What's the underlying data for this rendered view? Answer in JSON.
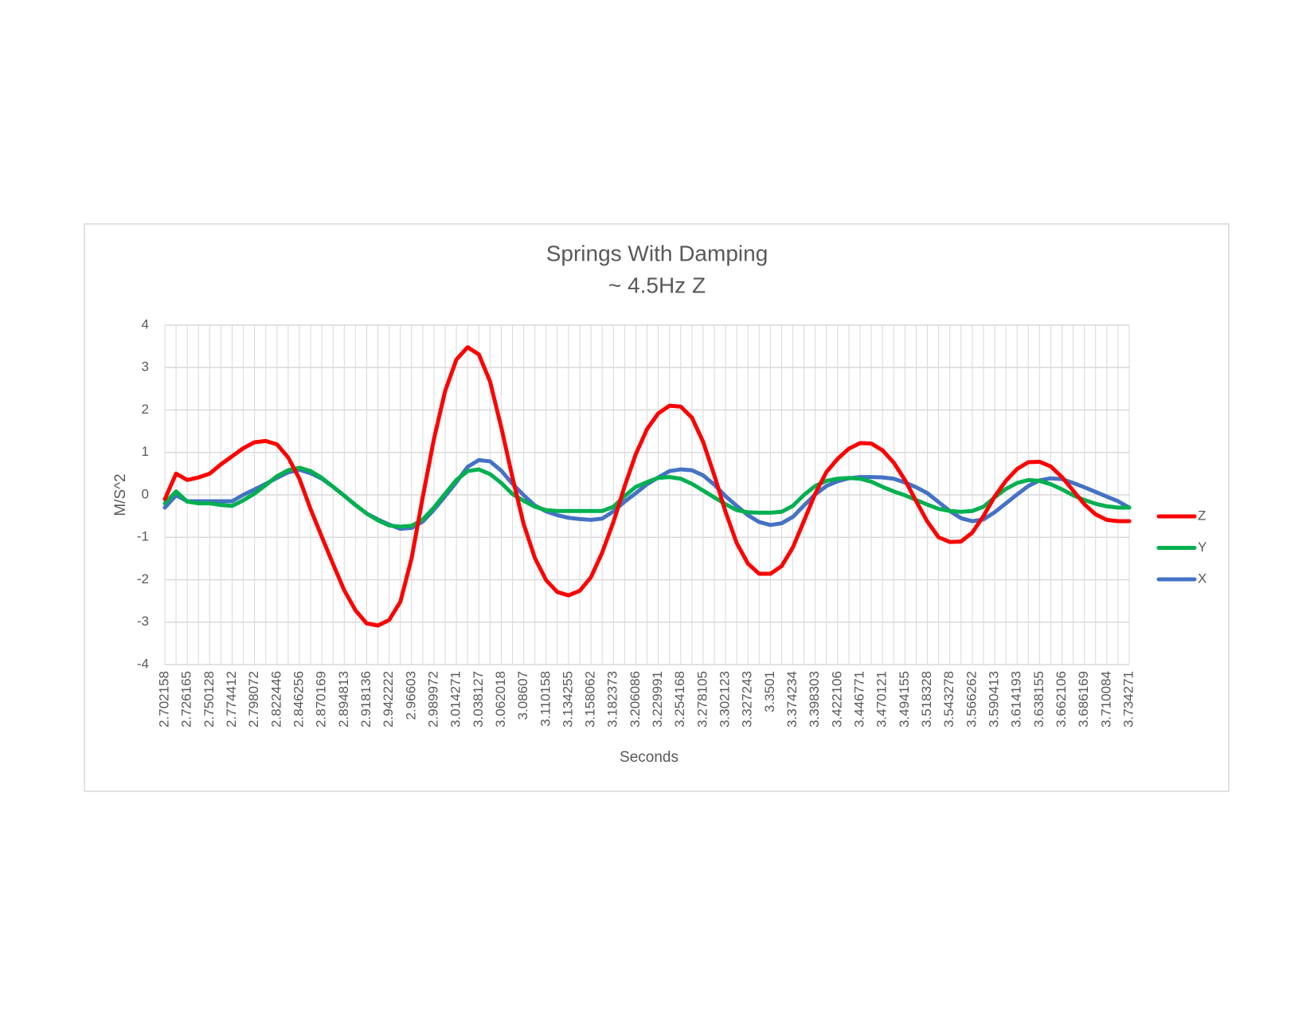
{
  "chart_data": {
    "type": "line",
    "title": "Springs With Damping",
    "subtitle": "~ 4.5Hz Z",
    "x_label": "Seconds",
    "y_label": "M/S^2",
    "categories": [
      "2.702158",
      null,
      "2.726165",
      null,
      "2.750128",
      null,
      "2.774412",
      null,
      "2.798072",
      null,
      "2.822446",
      null,
      "2.846256",
      null,
      "2.870169",
      null,
      "2.894813",
      null,
      "2.918136",
      null,
      "2.942222",
      null,
      "2.96603",
      null,
      "2.989972",
      null,
      "3.014271",
      null,
      "3.038127",
      null,
      "3.062018",
      null,
      "3.08607",
      null,
      "3.110158",
      null,
      "3.134255",
      null,
      "3.158062",
      null,
      "3.182373",
      null,
      "3.206086",
      null,
      "3.229991",
      null,
      "3.254168",
      null,
      "3.278105",
      null,
      "3.302123",
      null,
      "3.327243",
      null,
      "3.3501",
      null,
      "3.374234",
      null,
      "3.398303",
      null,
      "3.422106",
      null,
      "3.446771",
      null,
      "3.470121",
      null,
      "3.494155",
      null,
      "3.518328",
      null,
      "3.543278",
      null,
      "3.566262",
      null,
      "3.590413",
      null,
      "3.614193",
      null,
      "3.638155",
      null,
      "3.662106",
      null,
      "3.686169",
      null,
      "3.710084",
      null,
      "3.734271"
    ],
    "series": [
      {
        "name": "Z",
        "color": "#ff0000",
        "values": [
          -0.1,
          0.5,
          0.35,
          0.41,
          0.5,
          0.72,
          0.91,
          1.1,
          1.24,
          1.27,
          1.19,
          0.88,
          0.38,
          -0.34,
          -0.99,
          -1.63,
          -2.25,
          -2.72,
          -3.03,
          -3.08,
          -2.95,
          -2.52,
          -1.5,
          -0.05,
          1.32,
          2.45,
          3.19,
          3.48,
          3.31,
          2.67,
          1.59,
          0.41,
          -0.69,
          -1.49,
          -2.01,
          -2.29,
          -2.37,
          -2.26,
          -1.94,
          -1.36,
          -0.64,
          0.2,
          0.96,
          1.55,
          1.92,
          2.1,
          2.08,
          1.82,
          1.25,
          0.46,
          -0.4,
          -1.14,
          -1.62,
          -1.86,
          -1.86,
          -1.68,
          -1.24,
          -0.61,
          0.03,
          0.54,
          0.85,
          1.09,
          1.22,
          1.21,
          1.05,
          0.76,
          0.35,
          -0.15,
          -0.63,
          -1.0,
          -1.11,
          -1.1,
          -0.89,
          -0.5,
          -0.04,
          0.33,
          0.61,
          0.77,
          0.78,
          0.67,
          0.42,
          0.1,
          -0.22,
          -0.46,
          -0.59,
          -0.62,
          -0.62
        ]
      },
      {
        "name": "Y",
        "color": "#00b050",
        "values": [
          -0.2,
          0.08,
          -0.16,
          -0.2,
          -0.2,
          -0.24,
          -0.26,
          -0.13,
          0.03,
          0.23,
          0.44,
          0.58,
          0.64,
          0.56,
          0.4,
          0.19,
          -0.02,
          -0.24,
          -0.44,
          -0.6,
          -0.72,
          -0.75,
          -0.73,
          -0.58,
          -0.3,
          0.03,
          0.35,
          0.56,
          0.6,
          0.49,
          0.28,
          0.02,
          -0.14,
          -0.28,
          -0.36,
          -0.38,
          -0.38,
          -0.38,
          -0.38,
          -0.38,
          -0.28,
          -0.03,
          0.19,
          0.3,
          0.4,
          0.42,
          0.38,
          0.26,
          0.1,
          -0.06,
          -0.22,
          -0.36,
          -0.41,
          -0.42,
          -0.42,
          -0.4,
          -0.26,
          0.0,
          0.21,
          0.33,
          0.38,
          0.4,
          0.38,
          0.31,
          0.19,
          0.08,
          -0.01,
          -0.12,
          -0.23,
          -0.33,
          -0.38,
          -0.4,
          -0.38,
          -0.28,
          -0.06,
          0.14,
          0.28,
          0.35,
          0.33,
          0.25,
          0.13,
          -0.01,
          -0.12,
          -0.21,
          -0.27,
          -0.3,
          -0.3
        ]
      },
      {
        "name": "X",
        "color": "#4472c4",
        "values": [
          -0.3,
          -0.01,
          -0.15,
          -0.15,
          -0.15,
          -0.15,
          -0.15,
          0.0,
          0.13,
          0.26,
          0.4,
          0.53,
          0.59,
          0.51,
          0.38,
          0.19,
          -0.02,
          -0.24,
          -0.44,
          -0.58,
          -0.7,
          -0.8,
          -0.78,
          -0.63,
          -0.35,
          -0.03,
          0.3,
          0.66,
          0.82,
          0.79,
          0.57,
          0.26,
          -0.01,
          -0.25,
          -0.39,
          -0.48,
          -0.54,
          -0.57,
          -0.59,
          -0.56,
          -0.39,
          -0.16,
          0.04,
          0.25,
          0.41,
          0.56,
          0.6,
          0.58,
          0.46,
          0.24,
          -0.03,
          -0.26,
          -0.48,
          -0.64,
          -0.71,
          -0.67,
          -0.52,
          -0.25,
          0.01,
          0.21,
          0.32,
          0.39,
          0.42,
          0.42,
          0.41,
          0.38,
          0.29,
          0.18,
          0.04,
          -0.17,
          -0.38,
          -0.55,
          -0.62,
          -0.58,
          -0.41,
          -0.2,
          0.01,
          0.21,
          0.34,
          0.39,
          0.37,
          0.28,
          0.18,
          0.07,
          -0.04,
          -0.15,
          -0.3
        ]
      }
    ],
    "ylim": [
      -4,
      4
    ],
    "yticks": [
      -4,
      -3,
      -2,
      -1,
      0,
      1,
      2,
      3,
      4
    ],
    "grid": true,
    "legend": "right"
  }
}
